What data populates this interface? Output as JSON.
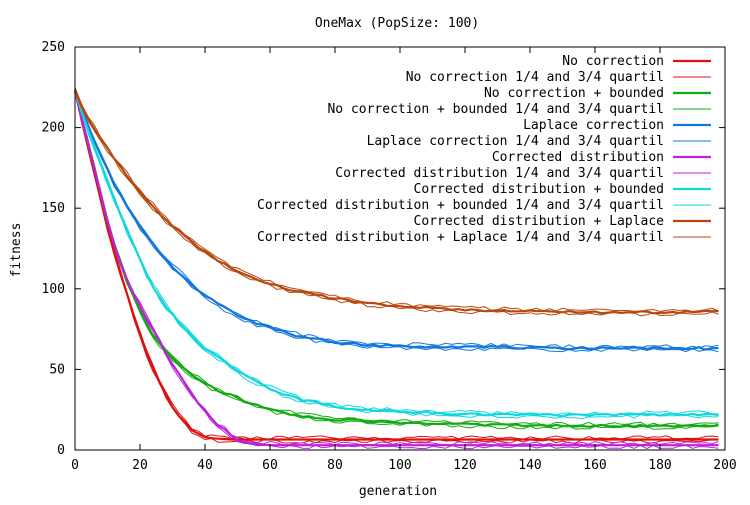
{
  "chart_data": {
    "type": "line",
    "title": "OneMax (PopSize: 100)",
    "xlabel": "generation",
    "ylabel": "fitness",
    "xlim": [
      0,
      200
    ],
    "ylim": [
      0,
      250
    ],
    "xticks": [
      0,
      20,
      40,
      60,
      80,
      100,
      120,
      140,
      160,
      180,
      200
    ],
    "yticks": [
      0,
      50,
      100,
      150,
      200,
      250
    ],
    "grid": false,
    "legend_position": "top-right",
    "x": [
      0,
      2,
      5,
      8,
      10,
      12,
      15,
      18,
      20,
      22,
      25,
      28,
      30,
      33,
      35,
      38,
      40,
      43,
      45,
      48,
      50,
      55,
      60,
      65,
      70,
      80,
      90,
      100,
      110,
      120,
      130,
      140,
      150,
      160,
      170,
      180,
      190,
      200
    ],
    "series": [
      {
        "name": "No correction",
        "color": "#dd1111",
        "width": 2.2,
        "values": [
          223,
          205,
          180,
          155,
          138,
          123,
          103,
          84,
          72,
          60,
          46,
          34,
          27,
          19,
          14,
          10,
          8,
          7,
          7,
          6.5,
          6.5,
          6.5,
          6.5,
          6.5,
          6.5,
          6.5,
          6.5,
          6.5,
          6.5,
          6.5,
          6.5,
          6.5,
          6.5,
          6.5,
          6.5,
          6.5,
          6.5,
          6.5
        ]
      },
      {
        "name": "No correction 1/4 and 3/4 quartil",
        "color": "#dd1111",
        "width": 1,
        "band": true,
        "ref": 0
      },
      {
        "name": "No correction + bounded",
        "color": "#12aa12",
        "width": 2.2,
        "values": [
          223,
          206,
          183,
          158,
          142,
          128,
          110,
          95,
          86,
          78,
          68,
          61,
          57,
          51,
          48,
          44,
          41,
          38,
          36,
          34,
          32,
          28,
          25,
          23,
          21,
          19,
          18,
          17,
          16.5,
          16,
          15.5,
          15,
          15,
          15,
          15,
          15,
          15,
          15
        ]
      },
      {
        "name": "No correction + bounded 1/4 and 3/4 quartil",
        "color": "#12aa12",
        "width": 1,
        "band": true,
        "ref": 2
      },
      {
        "name": "Laplace correction",
        "color": "#1177dd",
        "width": 2.2,
        "values": [
          223,
          211,
          196,
          183,
          174,
          166,
          155,
          145,
          139,
          133,
          125,
          118,
          114,
          108,
          104,
          99,
          96,
          92,
          89,
          86,
          83,
          79,
          76,
          73,
          70,
          67,
          65,
          64.5,
          64,
          64,
          64,
          63.5,
          63,
          63,
          63,
          63,
          63,
          63
        ]
      },
      {
        "name": "Laplace correction 1/4 and 3/4 quartil",
        "color": "#1177dd",
        "width": 1,
        "band": true,
        "ref": 4
      },
      {
        "name": "Corrected distribution",
        "color": "#bb22dd",
        "width": 2.2,
        "values": [
          223,
          206,
          183,
          158,
          142,
          128,
          110,
          97,
          90,
          82,
          71,
          60,
          53,
          44,
          37,
          29,
          24,
          17,
          14,
          9,
          6,
          3.5,
          3,
          3,
          3,
          3,
          3,
          3,
          3,
          3,
          3,
          3,
          3,
          3,
          3,
          3,
          3,
          3
        ]
      },
      {
        "name": "Corrected distribution 1/4 and 3/4 quartil",
        "color": "#bb22dd",
        "width": 1,
        "band": true,
        "ref": 6
      },
      {
        "name": "Corrected distribution + bounded",
        "color": "#11d8dd",
        "width": 2.2,
        "values": [
          223,
          210,
          193,
          177,
          166,
          156,
          141,
          127,
          118,
          109,
          98,
          89,
          84,
          77,
          72,
          67,
          63,
          59,
          56,
          52,
          49,
          43,
          38,
          34,
          31,
          27,
          25,
          24,
          23,
          22.5,
          22,
          22,
          21.5,
          21.5,
          22,
          22,
          22,
          22.5
        ]
      },
      {
        "name": "Corrected distribution + bounded 1/4 and 3/4 quartil",
        "color": "#11d8dd",
        "width": 1,
        "band": true,
        "ref": 8
      },
      {
        "name": "Corrected distribution + Laplace",
        "color": "#b8480e",
        "width": 2.2,
        "values": [
          223,
          213,
          202,
          193,
          187,
          181,
          173,
          165,
          160,
          155,
          149,
          143,
          139,
          134,
          130,
          126,
          123,
          119,
          116,
          113,
          111,
          107,
          103,
          100,
          98,
          94,
          91,
          89,
          88,
          87,
          86.5,
          86,
          86,
          85.5,
          85.5,
          85.5,
          85.5,
          86
        ]
      },
      {
        "name": "Corrected distribution + Laplace 1/4 and 3/4 quartil",
        "color": "#b8480e",
        "width": 1,
        "band": true,
        "ref": 10
      }
    ]
  }
}
